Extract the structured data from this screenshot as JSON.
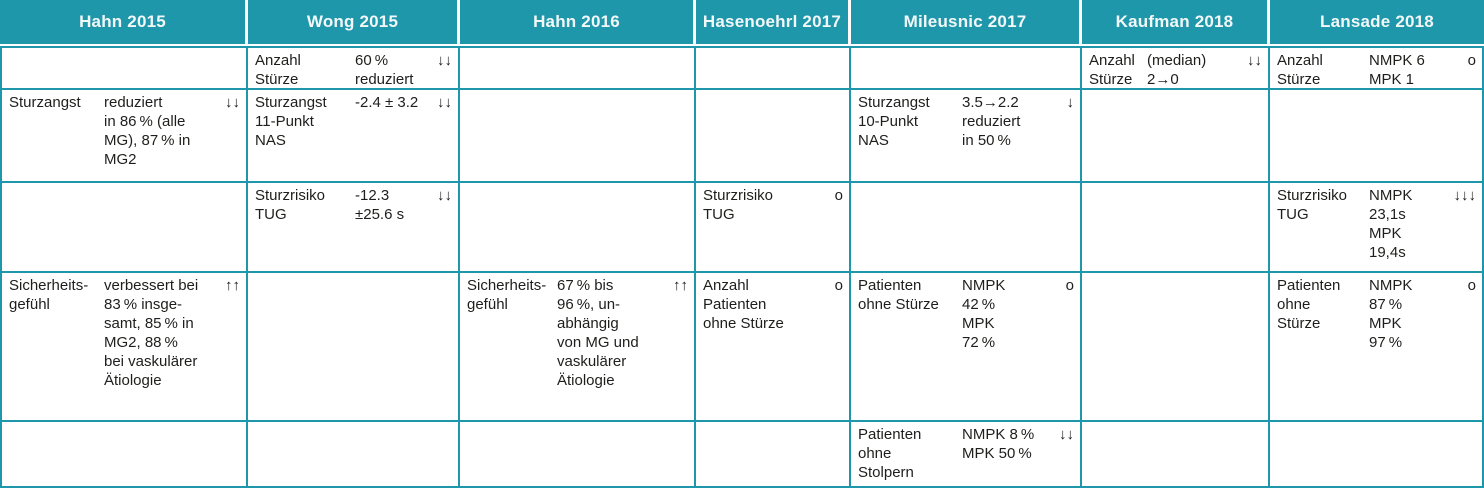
{
  "colors": {
    "teal": "#1e97ab",
    "header_text": "#f2f8f8",
    "body_text": "#1e1e1c"
  },
  "table": {
    "columns": [
      {
        "header": "Hahn 2015"
      },
      {
        "header": "Wong 2015"
      },
      {
        "header": "Hahn 2016"
      },
      {
        "header": "Hasenoehrl 2017"
      },
      {
        "header": "Mileusnic 2017"
      },
      {
        "header": "Kaufman 2018"
      },
      {
        "header": "Lansade 2018"
      }
    ],
    "rows": [
      {
        "cells": [
          {
            "label": "",
            "value": "",
            "symbol": ""
          },
          {
            "label": "Anzahl\nStürze",
            "value": "60 %\nreduziert",
            "symbol": "↓↓"
          },
          {
            "label": "",
            "value": "",
            "symbol": ""
          },
          {
            "label": "",
            "value": "",
            "symbol": ""
          },
          {
            "label": "",
            "value": "",
            "symbol": ""
          },
          {
            "label": "Anzahl\nStürze",
            "value": "(median)\n2→0",
            "symbol": "↓↓"
          },
          {
            "label": "Anzahl\nStürze",
            "value": "NMPK 6\nMPK 1",
            "symbol": "o"
          }
        ]
      },
      {
        "cells": [
          {
            "label": "Sturzangst",
            "value": "reduziert\nin 86 % (alle\nMG), 87 % in\nMG2",
            "symbol": "↓↓"
          },
          {
            "label": "Sturzangst\n11-Punkt\nNAS",
            "value": "-2.4 ± 3.2",
            "symbol": "↓↓"
          },
          {
            "label": "",
            "value": "",
            "symbol": ""
          },
          {
            "label": "",
            "value": "",
            "symbol": ""
          },
          {
            "label": "Sturzangst\n10-Punkt\nNAS",
            "value": "3.5→2.2\nreduziert\nin 50 %",
            "symbol": "↓"
          },
          {
            "label": "",
            "value": "",
            "symbol": ""
          },
          {
            "label": "",
            "value": "",
            "symbol": ""
          }
        ]
      },
      {
        "cells": [
          {
            "label": "",
            "value": "",
            "symbol": ""
          },
          {
            "label": "Sturzrisiko\nTUG",
            "value": "-12.3\n±25.6 s",
            "symbol": "↓↓"
          },
          {
            "label": "",
            "value": "",
            "symbol": ""
          },
          {
            "label": "Sturzrisiko\nTUG",
            "value": "",
            "symbol": "o"
          },
          {
            "label": "",
            "value": "",
            "symbol": ""
          },
          {
            "label": "",
            "value": "",
            "symbol": ""
          },
          {
            "label": "Sturzrisiko\nTUG",
            "value": "NMPK\n23,1s\nMPK\n19,4s",
            "symbol": "↓↓↓"
          }
        ]
      },
      {
        "cells": [
          {
            "label": "Sicherheits-\ngefühl",
            "value": "verbessert bei\n83 % insge-\nsamt, 85 % in\nMG2, 88 %\nbei vaskulärer\nÄtiologie",
            "symbol": "↑↑"
          },
          {
            "label": "",
            "value": "",
            "symbol": ""
          },
          {
            "label": "Sicherheits-\ngefühl",
            "value": "67 % bis\n96 %, un-\nabhängig\nvon MG und\nvaskulärer\nÄtiologie",
            "symbol": "↑↑"
          },
          {
            "label": "Anzahl\nPatienten\nohne Stürze",
            "value": "",
            "symbol": "o"
          },
          {
            "label": "Patienten\nohne Stürze",
            "value": "NMPK\n42 %\nMPK\n72 %",
            "symbol": "o"
          },
          {
            "label": "",
            "value": "",
            "symbol": ""
          },
          {
            "label": "Patienten\nohne\nStürze",
            "value": "NMPK\n87 %\nMPK\n97 %",
            "symbol": "o"
          }
        ]
      },
      {
        "cells": [
          {
            "label": "",
            "value": "",
            "symbol": ""
          },
          {
            "label": "",
            "value": "",
            "symbol": ""
          },
          {
            "label": "",
            "value": "",
            "symbol": ""
          },
          {
            "label": "",
            "value": "",
            "symbol": ""
          },
          {
            "label": "Patienten\nohne\nStolpern",
            "value": "NMPK 8 %\nMPK 50 %",
            "symbol": "↓↓"
          },
          {
            "label": "",
            "value": "",
            "symbol": ""
          },
          {
            "label": "",
            "value": "",
            "symbol": ""
          }
        ]
      }
    ]
  }
}
